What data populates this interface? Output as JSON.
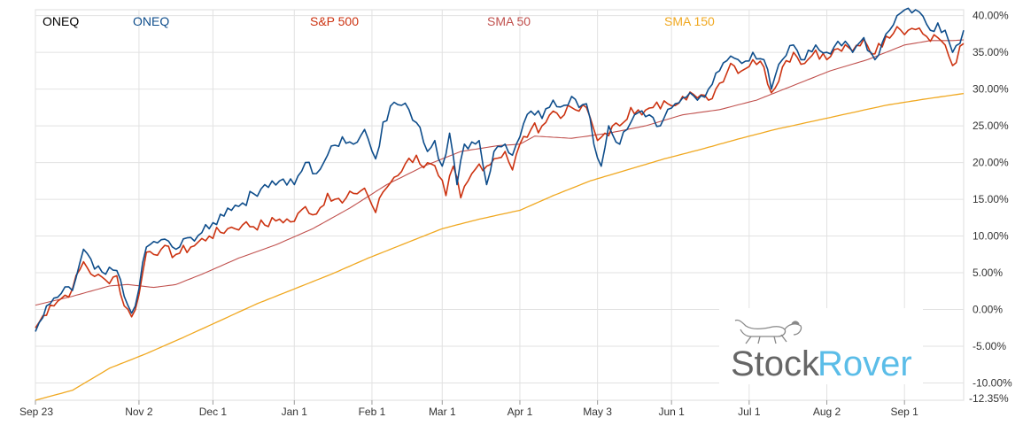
{
  "chart_data": {
    "type": "line",
    "title": "",
    "xlabel": "",
    "ylabel": "",
    "x_tick_labels": [
      "Sep 23",
      "Nov 2",
      "Dec 1",
      "Jan 1",
      "Feb 1",
      "Mar 1",
      "Apr 1",
      "May 3",
      "Jun 1",
      "Jul 1",
      "Aug 2",
      "Sep 1"
    ],
    "x_tick_index": [
      0,
      28,
      48,
      70,
      91,
      110,
      131,
      152,
      172,
      193,
      214,
      235
    ],
    "x_total": 252,
    "ylim": [
      -12.35,
      40.8
    ],
    "y_ticks": [
      40,
      35,
      30,
      25,
      20,
      15,
      10,
      5,
      0,
      -5,
      -10
    ],
    "y_tick_labels": [
      "40.00%",
      "35.00%",
      "30.00%",
      "25.00%",
      "20.00%",
      "15.00%",
      "10.00%",
      "5.00%",
      "0.00%",
      "-5.00%",
      "-10.00%"
    ],
    "y_min_label": "-12.35%",
    "grid": true,
    "legend_position": "top",
    "legend": [
      {
        "label": "ONEQ",
        "color": "#000000"
      },
      {
        "label": "ONEQ",
        "color": "#0e4d8b"
      },
      {
        "label": "S&P 500",
        "color": "#cc3311"
      },
      {
        "label": "SMA 50",
        "color": "#c0504d"
      },
      {
        "label": "SMA 150",
        "color": "#f0a820"
      }
    ],
    "series": [
      {
        "name": "ONEQ",
        "color": "#0e4d8b",
        "anchors": [
          [
            0,
            -3
          ],
          [
            4,
            0.8
          ],
          [
            7,
            2.2
          ],
          [
            10,
            2.6
          ],
          [
            13,
            8.2
          ],
          [
            16,
            5.5
          ],
          [
            19,
            4.8
          ],
          [
            22,
            5.3
          ],
          [
            24,
            1.8
          ],
          [
            26,
            -0.5
          ],
          [
            28,
            2.8
          ],
          [
            30,
            8.5
          ],
          [
            34,
            9.5
          ],
          [
            38,
            8.2
          ],
          [
            42,
            9.8
          ],
          [
            47,
            11
          ],
          [
            52,
            13.8
          ],
          [
            56,
            14.5
          ],
          [
            62,
            17
          ],
          [
            66,
            17.5
          ],
          [
            70,
            17
          ],
          [
            73,
            20
          ],
          [
            76,
            18.5
          ],
          [
            79,
            21
          ],
          [
            83,
            23.5
          ],
          [
            86,
            22.5
          ],
          [
            89,
            24.5
          ],
          [
            92,
            20.5
          ],
          [
            94,
            25.5
          ],
          [
            97,
            28.2
          ],
          [
            101,
            27.2
          ],
          [
            104,
            24.8
          ],
          [
            106,
            21.5
          ],
          [
            108,
            23
          ],
          [
            110,
            19.5
          ],
          [
            112,
            24
          ],
          [
            114,
            17
          ],
          [
            116,
            22.5
          ],
          [
            120,
            23
          ],
          [
            122,
            17
          ],
          [
            124,
            21.5
          ],
          [
            127,
            22.5
          ],
          [
            129,
            21
          ],
          [
            131,
            23.5
          ],
          [
            134,
            27
          ],
          [
            137,
            26
          ],
          [
            140,
            28.5
          ],
          [
            143,
            27.8
          ],
          [
            145,
            29
          ],
          [
            147,
            27.5
          ],
          [
            149,
            28
          ],
          [
            151,
            22.5
          ],
          [
            153,
            19.5
          ],
          [
            155,
            25
          ],
          [
            158,
            22.5
          ],
          [
            160,
            24.5
          ],
          [
            163,
            26.8
          ],
          [
            166,
            26.5
          ],
          [
            169,
            25
          ],
          [
            173,
            28
          ],
          [
            175,
            28.8
          ],
          [
            177,
            29.5
          ],
          [
            179,
            28.5
          ],
          [
            182,
            30
          ],
          [
            185,
            32.5
          ],
          [
            188,
            34.5
          ],
          [
            191,
            33.5
          ],
          [
            194,
            35
          ],
          [
            197,
            34
          ],
          [
            199,
            30
          ],
          [
            202,
            34
          ],
          [
            205,
            36
          ],
          [
            208,
            34
          ],
          [
            211,
            36
          ],
          [
            214,
            35
          ],
          [
            217,
            36.5
          ],
          [
            221,
            35
          ],
          [
            224,
            37
          ],
          [
            227,
            34
          ],
          [
            230,
            37.5
          ],
          [
            233,
            40
          ],
          [
            236,
            41
          ],
          [
            239,
            40.5
          ],
          [
            242,
            38
          ],
          [
            244,
            39
          ],
          [
            246,
            38
          ],
          [
            248,
            35
          ],
          [
            251,
            38
          ]
        ]
      },
      {
        "name": "S&P 500",
        "color": "#cc3311",
        "anchors": [
          [
            0,
            -2.5
          ],
          [
            4,
            0.6
          ],
          [
            7,
            1.5
          ],
          [
            10,
            2.8
          ],
          [
            13,
            6.5
          ],
          [
            16,
            4.5
          ],
          [
            19,
            4.0
          ],
          [
            22,
            4.6
          ],
          [
            24,
            0.5
          ],
          [
            26,
            -1.0
          ],
          [
            28,
            2.0
          ],
          [
            30,
            7.8
          ],
          [
            34,
            8.2
          ],
          [
            38,
            7.5
          ],
          [
            42,
            8.5
          ],
          [
            47,
            10
          ],
          [
            52,
            11
          ],
          [
            56,
            11.5
          ],
          [
            62,
            11.5
          ],
          [
            66,
            12.3
          ],
          [
            70,
            12
          ],
          [
            73,
            14
          ],
          [
            76,
            13
          ],
          [
            79,
            15.8
          ],
          [
            83,
            14.5
          ],
          [
            86,
            15.8
          ],
          [
            89,
            16.5
          ],
          [
            92,
            13.2
          ],
          [
            94,
            16
          ],
          [
            97,
            18
          ],
          [
            100,
            19.8
          ],
          [
            103,
            21
          ],
          [
            105,
            19.3
          ],
          [
            107,
            19.8
          ],
          [
            109,
            18.2
          ],
          [
            111,
            15.5
          ],
          [
            113,
            19.5
          ],
          [
            115,
            15.2
          ],
          [
            117,
            17.5
          ],
          [
            120,
            19.8
          ],
          [
            122,
            19.5
          ],
          [
            124,
            20.5
          ],
          [
            127,
            21.5
          ],
          [
            129,
            19
          ],
          [
            131,
            22.5
          ],
          [
            134,
            24.5
          ],
          [
            137,
            25
          ],
          [
            140,
            27
          ],
          [
            143,
            26.5
          ],
          [
            145,
            27.5
          ],
          [
            147,
            27
          ],
          [
            149,
            27.5
          ],
          [
            151,
            24.5
          ],
          [
            152,
            23
          ],
          [
            154,
            24
          ],
          [
            158,
            25
          ],
          [
            161,
            27.5
          ],
          [
            164,
            26.5
          ],
          [
            167,
            27.5
          ],
          [
            171,
            28
          ],
          [
            175,
            29
          ],
          [
            177,
            29.6
          ],
          [
            179,
            28.8
          ],
          [
            182,
            28.5
          ],
          [
            185,
            30.8
          ],
          [
            188,
            33.5
          ],
          [
            191,
            32.5
          ],
          [
            194,
            34
          ],
          [
            197,
            33
          ],
          [
            199,
            29.5
          ],
          [
            202,
            33
          ],
          [
            205,
            35
          ],
          [
            208,
            33.5
          ],
          [
            211,
            35.3
          ],
          [
            214,
            34
          ],
          [
            217,
            35.5
          ],
          [
            221,
            35.2
          ],
          [
            224,
            36.8
          ],
          [
            227,
            34.8
          ],
          [
            230,
            37.2
          ],
          [
            233,
            38.5
          ],
          [
            236,
            38
          ],
          [
            239,
            38.3
          ],
          [
            242,
            36.5
          ],
          [
            244,
            37
          ],
          [
            246,
            36
          ],
          [
            248,
            33.2
          ],
          [
            251,
            36.2
          ]
        ]
      },
      {
        "name": "SMA 50",
        "color": "#c0504d",
        "anchors": [
          [
            0,
            0.6
          ],
          [
            10,
            1.8
          ],
          [
            20,
            3.2
          ],
          [
            25,
            3.4
          ],
          [
            32,
            3.0
          ],
          [
            38,
            3.4
          ],
          [
            45,
            4.8
          ],
          [
            55,
            7
          ],
          [
            65,
            8.8
          ],
          [
            75,
            11
          ],
          [
            85,
            13.8
          ],
          [
            95,
            17
          ],
          [
            105,
            19.5
          ],
          [
            115,
            21.5
          ],
          [
            125,
            22.3
          ],
          [
            131,
            22.5
          ],
          [
            135,
            23.6
          ],
          [
            145,
            23.3
          ],
          [
            155,
            24
          ],
          [
            165,
            25
          ],
          [
            175,
            26.5
          ],
          [
            185,
            27.2
          ],
          [
            195,
            28.5
          ],
          [
            205,
            30.5
          ],
          [
            215,
            32.5
          ],
          [
            225,
            34
          ],
          [
            235,
            36
          ],
          [
            242,
            36.6
          ],
          [
            248,
            36.6
          ],
          [
            251,
            36.7
          ]
        ]
      },
      {
        "name": "SMA 150",
        "color": "#f0a820",
        "anchors": [
          [
            0,
            -12.35
          ],
          [
            10,
            -11
          ],
          [
            20,
            -8
          ],
          [
            30,
            -6
          ],
          [
            40,
            -3.8
          ],
          [
            50,
            -1.5
          ],
          [
            60,
            0.8
          ],
          [
            70,
            2.8
          ],
          [
            80,
            4.8
          ],
          [
            90,
            7
          ],
          [
            100,
            9
          ],
          [
            110,
            11
          ],
          [
            120,
            12.3
          ],
          [
            131,
            13.5
          ],
          [
            140,
            15.5
          ],
          [
            150,
            17.5
          ],
          [
            160,
            19
          ],
          [
            170,
            20.5
          ],
          [
            180,
            21.8
          ],
          [
            190,
            23.2
          ],
          [
            200,
            24.5
          ],
          [
            210,
            25.6
          ],
          [
            220,
            26.7
          ],
          [
            230,
            27.8
          ],
          [
            240,
            28.6
          ],
          [
            251,
            29.4
          ]
        ]
      }
    ]
  },
  "branding": {
    "name_part1": "Stock",
    "name_part2": "Rover",
    "color_part1": "#666666",
    "color_part2": "#5bbde8",
    "mascot": "hound-dog-icon"
  }
}
